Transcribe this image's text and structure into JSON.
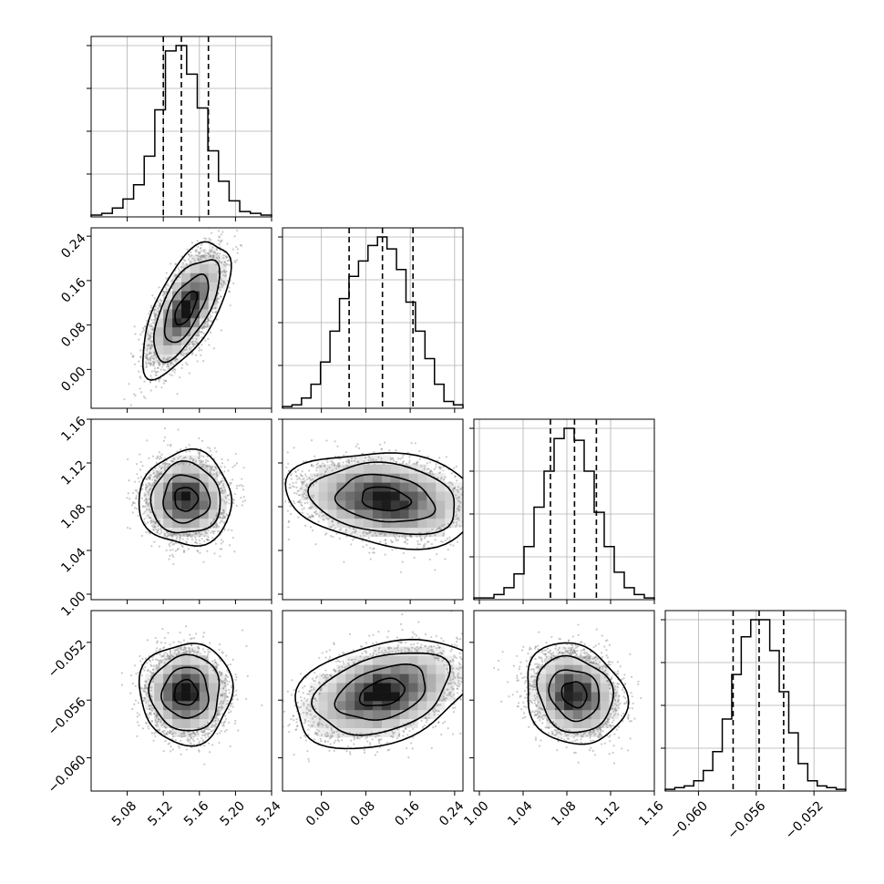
{
  "chart_data": {
    "type": "corner",
    "title": "",
    "n_parameters": 4,
    "parameters": [
      {
        "id": "p0",
        "range": [
          5.04,
          5.24
        ],
        "ticks": [
          5.08,
          5.12,
          5.16,
          5.2,
          5.24
        ],
        "tick_labels": [
          "5.08",
          "5.12",
          "5.16",
          "5.20",
          "5.24"
        ],
        "quantiles": [
          5.12,
          5.14,
          5.17
        ],
        "histogram": [
          1,
          2,
          5,
          10,
          18,
          34,
          60,
          93,
          96,
          80,
          61,
          37,
          20,
          9,
          3,
          2,
          1
        ]
      },
      {
        "id": "p1",
        "range": [
          -0.07,
          0.255
        ],
        "ticks": [
          0.0,
          0.08,
          0.16,
          0.24
        ],
        "tick_labels": [
          "0.00",
          "0.08",
          "0.16",
          "0.24"
        ],
        "quantiles": [
          0.05,
          0.11,
          0.165
        ],
        "histogram": [
          1,
          2,
          6,
          14,
          27,
          45,
          64,
          77,
          86,
          95,
          100,
          93,
          81,
          62,
          45,
          29,
          14,
          4,
          2
        ]
      },
      {
        "id": "p2",
        "range": [
          0.995,
          1.16
        ],
        "ticks": [
          1.0,
          1.04,
          1.08,
          1.12,
          1.16
        ],
        "tick_labels": [
          "1.00",
          "1.04",
          "1.08",
          "1.12",
          "1.16"
        ],
        "quantiles": [
          1.065,
          1.087,
          1.107
        ],
        "histogram": [
          1,
          1,
          3,
          7,
          15,
          31,
          54,
          75,
          94,
          100,
          93,
          75,
          51,
          31,
          16,
          7,
          3,
          1
        ]
      },
      {
        "id": "p3",
        "range": [
          -0.0623,
          -0.0498
        ],
        "ticks": [
          -0.06,
          -0.056,
          -0.052
        ],
        "tick_labels": [
          "−0.060",
          "−0.056",
          "−0.052"
        ],
        "quantiles": [
          -0.0576,
          -0.0558,
          -0.0541
        ],
        "histogram": [
          1,
          2,
          3,
          6,
          12,
          23,
          42,
          68,
          90,
          100,
          100,
          82,
          58,
          34,
          16,
          6,
          3,
          2,
          1
        ]
      }
    ],
    "pairs": [
      {
        "x": 0,
        "y": 1,
        "mean": [
          5.145,
          0.11
        ],
        "sd": [
          0.018,
          0.045
        ],
        "corr": 0.65
      },
      {
        "x": 0,
        "y": 2,
        "mean": [
          5.145,
          1.087
        ],
        "sd": [
          0.019,
          0.016
        ],
        "corr": 0.0
      },
      {
        "x": 1,
        "y": 2,
        "mean": [
          0.115,
          1.087
        ],
        "sd": [
          0.065,
          0.016
        ],
        "corr": -0.2
      },
      {
        "x": 0,
        "y": 3,
        "mean": [
          5.145,
          -0.0555
        ],
        "sd": [
          0.019,
          0.0013
        ],
        "corr": 0.0
      },
      {
        "x": 1,
        "y": 3,
        "mean": [
          0.11,
          -0.0555
        ],
        "sd": [
          0.06,
          0.0014
        ],
        "corr": 0.35
      },
      {
        "x": 2,
        "y": 3,
        "mean": [
          1.087,
          -0.0556
        ],
        "sd": [
          0.017,
          0.0013
        ],
        "corr": -0.15
      }
    ],
    "contour_levels_sigma": [
      0.5,
      1.0,
      1.5,
      2.0
    ],
    "grid": true,
    "legend": "none"
  }
}
